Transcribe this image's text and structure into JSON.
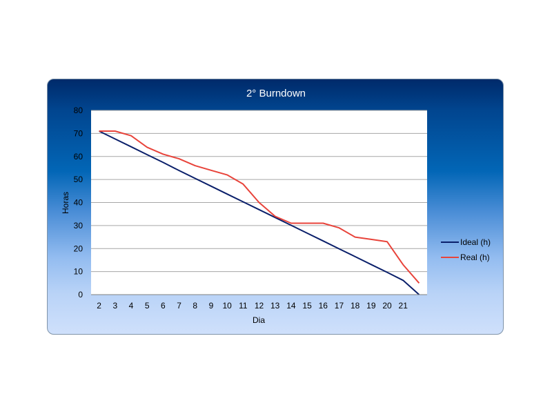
{
  "chart_data": {
    "type": "line",
    "title": "2° Burndown",
    "xlabel": "Dia",
    "ylabel": "Horas",
    "x_tick_labels": [
      "2",
      "3",
      "4",
      "5",
      "6",
      "7",
      "8",
      "9",
      "10",
      "11",
      "12",
      "13",
      "14",
      "15",
      "16",
      "17",
      "18",
      "19",
      "20",
      "21",
      ""
    ],
    "ylim": [
      0,
      80
    ],
    "y_ticks": [
      0,
      10,
      20,
      30,
      40,
      50,
      60,
      70,
      80
    ],
    "grid": true,
    "legend_position": "right",
    "series": [
      {
        "name": "Ideal (h)",
        "color": "#0a1f6a",
        "values": [
          71,
          67.6,
          64.2,
          60.8,
          57.4,
          53.9,
          50.5,
          47.1,
          43.7,
          40.3,
          36.9,
          33.5,
          30.1,
          26.7,
          23.3,
          19.9,
          16.5,
          13.1,
          9.7,
          6.2,
          0
        ]
      },
      {
        "name": "Real (h)",
        "color": "#e8433a",
        "values": [
          71,
          71,
          69,
          64,
          61,
          59,
          56,
          54,
          52,
          48,
          40,
          34,
          31,
          31,
          31,
          29,
          25,
          24,
          23,
          13,
          5
        ]
      }
    ]
  }
}
